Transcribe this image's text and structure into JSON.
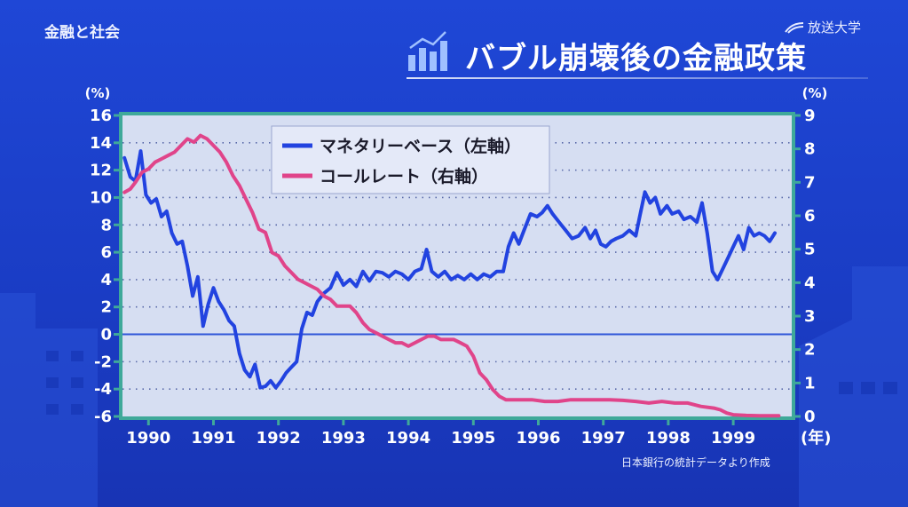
{
  "header": {
    "course_title": "金融と社会",
    "logo_text": "放送大学",
    "slide_title": "バブル崩壊後の金融政策"
  },
  "footer": {
    "source": "日本銀行の統計データより作成"
  },
  "colors": {
    "background": "#1a3ec9",
    "plot_background": "#d6def2",
    "plot_border": "#3fa99a",
    "monetary_base": "#2243e0",
    "call_rate": "#e0448a"
  },
  "chart_data": {
    "type": "line",
    "title": "",
    "left_axis": {
      "unit_label": "(%)",
      "ylim": [
        -6,
        16
      ],
      "ticks": [
        16,
        14,
        12,
        10,
        8,
        6,
        4,
        2,
        0,
        -2,
        -4,
        -6
      ]
    },
    "right_axis": {
      "unit_label": "(%)",
      "ylim": [
        0,
        9
      ],
      "ticks": [
        9,
        8,
        7,
        6,
        5,
        4,
        3,
        2,
        1,
        0
      ]
    },
    "x_axis": {
      "xlim": [
        1989.6,
        1999.9
      ],
      "ticks": [
        "1990",
        "1991",
        "1992",
        "1993",
        "1994",
        "1995",
        "1996",
        "1997",
        "1998",
        "1999"
      ],
      "unit_label": "(年)"
    },
    "grid": true,
    "legend_position": "top-left",
    "series": [
      {
        "name": "マネタリーベース（左軸）",
        "axis": "left",
        "points": [
          [
            1989.63,
            12.9
          ],
          [
            1989.72,
            11.5
          ],
          [
            1989.8,
            11.2
          ],
          [
            1989.88,
            13.4
          ],
          [
            1989.96,
            10.2
          ],
          [
            1990.04,
            9.6
          ],
          [
            1990.12,
            9.9
          ],
          [
            1990.2,
            8.6
          ],
          [
            1990.28,
            9.0
          ],
          [
            1990.36,
            7.4
          ],
          [
            1990.44,
            6.6
          ],
          [
            1990.52,
            6.8
          ],
          [
            1990.6,
            5.0
          ],
          [
            1990.68,
            2.8
          ],
          [
            1990.76,
            4.2
          ],
          [
            1990.84,
            0.6
          ],
          [
            1990.92,
            2.2
          ],
          [
            1991.0,
            3.4
          ],
          [
            1991.08,
            2.4
          ],
          [
            1991.16,
            1.8
          ],
          [
            1991.24,
            1.0
          ],
          [
            1991.32,
            0.6
          ],
          [
            1991.4,
            -1.4
          ],
          [
            1991.48,
            -2.6
          ],
          [
            1991.56,
            -3.1
          ],
          [
            1991.64,
            -2.2
          ],
          [
            1991.72,
            -3.9
          ],
          [
            1991.8,
            -3.8
          ],
          [
            1991.88,
            -3.4
          ],
          [
            1991.96,
            -3.9
          ],
          [
            1992.04,
            -3.4
          ],
          [
            1992.12,
            -2.8
          ],
          [
            1992.2,
            -2.4
          ],
          [
            1992.28,
            -2.0
          ],
          [
            1992.36,
            0.4
          ],
          [
            1992.44,
            1.6
          ],
          [
            1992.52,
            1.4
          ],
          [
            1992.6,
            2.4
          ],
          [
            1992.7,
            3.0
          ],
          [
            1992.8,
            3.4
          ],
          [
            1992.9,
            4.5
          ],
          [
            1993.0,
            3.6
          ],
          [
            1993.1,
            4.0
          ],
          [
            1993.2,
            3.5
          ],
          [
            1993.3,
            4.6
          ],
          [
            1993.4,
            3.9
          ],
          [
            1993.5,
            4.6
          ],
          [
            1993.6,
            4.5
          ],
          [
            1993.7,
            4.2
          ],
          [
            1993.8,
            4.6
          ],
          [
            1993.9,
            4.4
          ],
          [
            1994.0,
            4.0
          ],
          [
            1994.1,
            4.6
          ],
          [
            1994.2,
            4.8
          ],
          [
            1994.28,
            6.2
          ],
          [
            1994.36,
            4.6
          ],
          [
            1994.46,
            4.2
          ],
          [
            1994.56,
            4.6
          ],
          [
            1994.66,
            4.0
          ],
          [
            1994.76,
            4.3
          ],
          [
            1994.86,
            4.0
          ],
          [
            1994.96,
            4.4
          ],
          [
            1995.06,
            4.0
          ],
          [
            1995.16,
            4.4
          ],
          [
            1995.26,
            4.2
          ],
          [
            1995.36,
            4.6
          ],
          [
            1995.46,
            4.6
          ],
          [
            1995.54,
            6.4
          ],
          [
            1995.62,
            7.4
          ],
          [
            1995.7,
            6.6
          ],
          [
            1995.78,
            7.6
          ],
          [
            1995.88,
            8.8
          ],
          [
            1995.98,
            8.6
          ],
          [
            1996.06,
            8.9
          ],
          [
            1996.14,
            9.4
          ],
          [
            1996.22,
            8.8
          ],
          [
            1996.32,
            8.2
          ],
          [
            1996.42,
            7.6
          ],
          [
            1996.52,
            7.0
          ],
          [
            1996.62,
            7.2
          ],
          [
            1996.72,
            7.8
          ],
          [
            1996.8,
            7.0
          ],
          [
            1996.88,
            7.6
          ],
          [
            1996.96,
            6.6
          ],
          [
            1997.04,
            6.4
          ],
          [
            1997.12,
            6.8
          ],
          [
            1997.2,
            7.0
          ],
          [
            1997.3,
            7.2
          ],
          [
            1997.4,
            7.6
          ],
          [
            1997.5,
            7.2
          ],
          [
            1997.56,
            8.6
          ],
          [
            1997.64,
            10.4
          ],
          [
            1997.72,
            9.6
          ],
          [
            1997.8,
            10.0
          ],
          [
            1997.88,
            8.8
          ],
          [
            1997.98,
            9.4
          ],
          [
            1998.06,
            8.8
          ],
          [
            1998.16,
            9.0
          ],
          [
            1998.24,
            8.4
          ],
          [
            1998.34,
            8.6
          ],
          [
            1998.44,
            8.2
          ],
          [
            1998.52,
            9.6
          ],
          [
            1998.6,
            7.4
          ],
          [
            1998.68,
            4.6
          ],
          [
            1998.76,
            4.0
          ],
          [
            1998.84,
            4.8
          ],
          [
            1998.92,
            5.6
          ],
          [
            1999.0,
            6.4
          ],
          [
            1999.08,
            7.2
          ],
          [
            1999.16,
            6.2
          ],
          [
            1999.24,
            7.8
          ],
          [
            1999.32,
            7.2
          ],
          [
            1999.4,
            7.4
          ],
          [
            1999.48,
            7.2
          ],
          [
            1999.56,
            6.8
          ],
          [
            1999.64,
            7.4
          ]
        ]
      },
      {
        "name": "コールレート（右軸）",
        "axis": "right",
        "points": [
          [
            1989.63,
            6.7
          ],
          [
            1989.72,
            6.8
          ],
          [
            1989.8,
            7.0
          ],
          [
            1989.9,
            7.3
          ],
          [
            1990.0,
            7.4
          ],
          [
            1990.1,
            7.6
          ],
          [
            1990.2,
            7.7
          ],
          [
            1990.3,
            7.8
          ],
          [
            1990.4,
            7.9
          ],
          [
            1990.5,
            8.1
          ],
          [
            1990.6,
            8.3
          ],
          [
            1990.7,
            8.2
          ],
          [
            1990.8,
            8.4
          ],
          [
            1990.9,
            8.3
          ],
          [
            1991.0,
            8.1
          ],
          [
            1991.1,
            7.9
          ],
          [
            1991.2,
            7.6
          ],
          [
            1991.3,
            7.2
          ],
          [
            1991.4,
            6.9
          ],
          [
            1991.5,
            6.5
          ],
          [
            1991.6,
            6.1
          ],
          [
            1991.7,
            5.6
          ],
          [
            1991.8,
            5.5
          ],
          [
            1991.9,
            4.9
          ],
          [
            1992.0,
            4.8
          ],
          [
            1992.1,
            4.5
          ],
          [
            1992.2,
            4.3
          ],
          [
            1992.3,
            4.1
          ],
          [
            1992.4,
            4.0
          ],
          [
            1992.5,
            3.9
          ],
          [
            1992.6,
            3.8
          ],
          [
            1992.7,
            3.6
          ],
          [
            1992.8,
            3.5
          ],
          [
            1992.9,
            3.3
          ],
          [
            1993.0,
            3.3
          ],
          [
            1993.1,
            3.3
          ],
          [
            1993.2,
            3.1
          ],
          [
            1993.3,
            2.8
          ],
          [
            1993.4,
            2.6
          ],
          [
            1993.5,
            2.5
          ],
          [
            1993.6,
            2.4
          ],
          [
            1993.7,
            2.3
          ],
          [
            1993.8,
            2.2
          ],
          [
            1993.9,
            2.2
          ],
          [
            1994.0,
            2.1
          ],
          [
            1994.1,
            2.2
          ],
          [
            1994.2,
            2.3
          ],
          [
            1994.3,
            2.4
          ],
          [
            1994.4,
            2.4
          ],
          [
            1994.5,
            2.3
          ],
          [
            1994.6,
            2.3
          ],
          [
            1994.7,
            2.3
          ],
          [
            1994.8,
            2.2
          ],
          [
            1994.9,
            2.1
          ],
          [
            1995.0,
            1.8
          ],
          [
            1995.1,
            1.3
          ],
          [
            1995.2,
            1.1
          ],
          [
            1995.3,
            0.8
          ],
          [
            1995.4,
            0.6
          ],
          [
            1995.5,
            0.5
          ],
          [
            1995.7,
            0.5
          ],
          [
            1995.9,
            0.5
          ],
          [
            1996.1,
            0.45
          ],
          [
            1996.3,
            0.45
          ],
          [
            1996.5,
            0.5
          ],
          [
            1996.7,
            0.5
          ],
          [
            1996.9,
            0.5
          ],
          [
            1997.1,
            0.5
          ],
          [
            1997.3,
            0.48
          ],
          [
            1997.5,
            0.45
          ],
          [
            1997.7,
            0.4
          ],
          [
            1997.9,
            0.45
          ],
          [
            1998.1,
            0.4
          ],
          [
            1998.3,
            0.4
          ],
          [
            1998.5,
            0.3
          ],
          [
            1998.7,
            0.25
          ],
          [
            1998.8,
            0.2
          ],
          [
            1998.9,
            0.1
          ],
          [
            1999.0,
            0.05
          ],
          [
            1999.2,
            0.03
          ],
          [
            1999.4,
            0.02
          ],
          [
            1999.6,
            0.02
          ],
          [
            1999.7,
            0.02
          ]
        ]
      }
    ]
  }
}
